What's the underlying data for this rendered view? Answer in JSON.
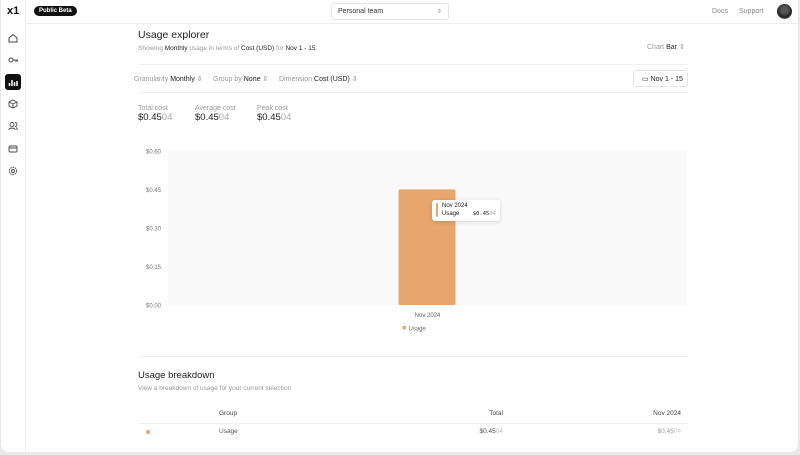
{
  "app": {
    "logo": "x1",
    "badge": "Public Beta",
    "team": "Personal team",
    "links": [
      "Docs",
      "Support"
    ]
  },
  "sidebar": {
    "items": [
      {
        "icon": "home-icon"
      },
      {
        "icon": "key-icon"
      },
      {
        "icon": "bar-chart-icon",
        "active": true
      },
      {
        "icon": "cube-icon"
      },
      {
        "icon": "users-icon"
      },
      {
        "icon": "credit-card-icon"
      },
      {
        "icon": "gear-icon"
      }
    ]
  },
  "explorer": {
    "title": "Usage explorer",
    "subtitle": {
      "p1": "Showing",
      "granularity": "Monthly",
      "p2": "usage in terms of",
      "dimension": "Cost (USD)",
      "p3": "for",
      "range": "Nov 1 - 15",
      "p4": "."
    },
    "chart_label": "Chart",
    "chart_value": "Bar",
    "filters": [
      {
        "label": "Granularity",
        "value": "Monthly"
      },
      {
        "label": "Group by",
        "value": "None"
      },
      {
        "label": "Dimension",
        "value": "Cost (USD)"
      }
    ],
    "date_button": "Nov 1 - 15",
    "stats": [
      {
        "label": "Total cost",
        "main": "$0.45",
        "faded": "04"
      },
      {
        "label": "Average cost",
        "main": "$0.45",
        "faded": "04"
      },
      {
        "label": "Peak cost",
        "main": "$0.45",
        "faded": "04"
      }
    ],
    "tooltip": {
      "title": "Nov 2024",
      "series": "Usage",
      "main": "$0.45",
      "faded": "04"
    }
  },
  "chart_data": {
    "type": "bar",
    "categories": [
      "Nov 2024"
    ],
    "series": [
      {
        "name": "Usage",
        "values": [
          0.4504
        ],
        "color": "#e8a66b"
      }
    ],
    "yticks": [
      "$0.00",
      "$0.15",
      "$0.30",
      "$0.45",
      "$0.60"
    ],
    "ylim": [
      0,
      0.6
    ],
    "legend": "bottom",
    "grid": false
  },
  "breakdown": {
    "title": "Usage breakdown",
    "subtitle": "View a breakdown of usage for your current selection",
    "columns": [
      "Group",
      "Total",
      "Nov 2024"
    ],
    "rows": [
      {
        "group": "Usage",
        "total_main": "$0.45",
        "total_faded": "04",
        "month_main": "$0.45",
        "month_faded": "04"
      }
    ]
  }
}
